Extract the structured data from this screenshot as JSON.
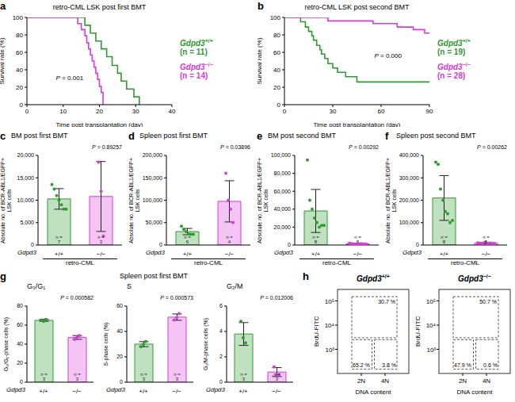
{
  "chart_data": [
    {
      "panel": "a",
      "type": "line",
      "title": "retro-CML LSK post first BMT",
      "xlabel": "Time post transplantation (day)",
      "ylabel": "Survival rate (%)",
      "xlim": [
        0,
        40
      ],
      "xticks": [
        0,
        10,
        20,
        30,
        40
      ],
      "ylim": [
        0,
        100
      ],
      "yticks": [
        0,
        20,
        40,
        60,
        80,
        100
      ],
      "line_style": "step",
      "annotation": "P = 0.001",
      "series": [
        {
          "name": "Gdpd3+/+",
          "n_label": "(n = 11)",
          "color": "#2f9a2f",
          "x": [
            0,
            16,
            17.5,
            19,
            20.5,
            22,
            23.5,
            25,
            26,
            27.5,
            29.5,
            31
          ],
          "values": [
            100,
            91,
            82,
            73,
            64,
            55,
            45,
            36,
            27,
            18,
            9,
            0
          ]
        },
        {
          "name": "Gdpd3−/−",
          "n_label": "(n = 14)",
          "color": "#d93ad9",
          "x": [
            0,
            14,
            15,
            16,
            16.5,
            17,
            17.5,
            18,
            18.5,
            19,
            19.5,
            20,
            20.5,
            21
          ],
          "values": [
            100,
            93,
            86,
            79,
            71,
            64,
            57,
            50,
            43,
            36,
            29,
            21,
            14,
            0
          ]
        }
      ]
    },
    {
      "panel": "b",
      "type": "line",
      "title": "retro-CML LSK post second BMT",
      "xlabel": "Time post transplantation (day)",
      "ylabel": "Survival rate (%)",
      "xlim": [
        0,
        90
      ],
      "xticks": [
        0,
        30,
        60,
        90
      ],
      "ylim": [
        0,
        100
      ],
      "yticks": [
        0,
        20,
        40,
        60,
        80,
        100
      ],
      "line_style": "step",
      "annotation": "P = 0.000",
      "series": [
        {
          "name": "Gdpd3+/+",
          "n_label": "(n = 19)",
          "color": "#2f9a2f",
          "x": [
            0,
            10,
            13,
            15,
            17,
            18,
            20,
            22,
            23,
            25,
            27,
            30,
            33,
            38,
            45,
            90
          ],
          "values": [
            100,
            95,
            89,
            84,
            79,
            74,
            68,
            63,
            58,
            53,
            47,
            42,
            37,
            32,
            26,
            26
          ]
        },
        {
          "name": "Gdpd3−/−",
          "n_label": "(n = 28)",
          "color": "#d93ad9",
          "x": [
            0,
            27,
            55,
            70,
            80,
            87,
            90
          ],
          "values": [
            100,
            96,
            93,
            89,
            86,
            82,
            82
          ]
        }
      ]
    },
    {
      "panel": "c",
      "type": "bar",
      "title": "BM post first BMT",
      "ylabel": "Absolute no. of BCR-ABL1/EGFP+ LSK cells",
      "xlabel": "Gdpd3",
      "group_label": "retro-CML",
      "categories": [
        "+/+",
        "−/−"
      ],
      "colors": [
        "#2f9a2f",
        "#d93ad9"
      ],
      "values": [
        10286,
        10833
      ],
      "errors": [
        2300,
        7800
      ],
      "points": [
        [
          13500,
          12500,
          11000,
          10000,
          9000,
          8000,
          8000
        ],
        [
          18500,
          12000,
          2000
        ]
      ],
      "n_labels": [
        "n = 7",
        "n = 3"
      ],
      "ylim": [
        0,
        20000
      ],
      "yticks": [
        0,
        {
          "value": 5000,
          "label": "5,000"
        },
        {
          "value": 10000,
          "label": "10,000"
        },
        {
          "value": 15000,
          "label": "15,000"
        },
        {
          "value": 20000,
          "label": "20,000"
        }
      ],
      "annotation": "P = 0.89257"
    },
    {
      "panel": "d",
      "type": "bar",
      "title": "Spleen post first BMT",
      "ylabel": "Absolute no. of BCR-ABL1/EGFP+ LSK cells",
      "xlabel": "Gdpd3",
      "group_label": "retro-CML",
      "categories": [
        "+/+",
        "−/−"
      ],
      "colors": [
        "#2f9a2f",
        "#d93ad9"
      ],
      "values": [
        30000,
        97500
      ],
      "errors": [
        7000,
        46000
      ],
      "points": [
        [
          42000,
          35000,
          30000,
          25000,
          24000,
          24000
        ],
        [
          160000,
          100000,
          80000,
          50000
        ]
      ],
      "n_labels": [
        "n = 6",
        "n = 4"
      ],
      "ylim": [
        0,
        200000
      ],
      "yticks": [
        0,
        {
          "value": 50000,
          "label": "50,000"
        },
        {
          "value": 100000,
          "label": "100,000"
        },
        {
          "value": 150000,
          "label": "150,000"
        },
        {
          "value": 200000,
          "label": "200,000"
        }
      ],
      "annotation": "P = 0.03896"
    },
    {
      "panel": "e",
      "type": "bar",
      "title": "BM post second BMT",
      "ylabel": "Absolute no. of BCR-ABL1/EGFP+ LSK cells",
      "xlabel": "Gdpd3",
      "group_label": "retro-CML",
      "categories": [
        "+/+",
        "−/−"
      ],
      "colors": [
        "#2f9a2f",
        "#d93ad9"
      ],
      "values": [
        38000,
        1250
      ],
      "errors": [
        24000,
        450
      ],
      "points": [
        [
          95000,
          50000,
          40000,
          30000,
          25000,
          20000,
          22000,
          22000
        ],
        [
          2000,
          1500,
          1000,
          1000,
          800,
          1500,
          1200,
          1000
        ]
      ],
      "n_labels": [
        "n = 8",
        "n = 8"
      ],
      "ylim": [
        0,
        100000
      ],
      "yticks": [
        0,
        {
          "value": 20000,
          "label": "20,000"
        },
        {
          "value": 40000,
          "label": "40,000"
        },
        {
          "value": 60000,
          "label": "60,000"
        },
        {
          "value": 80000,
          "label": "80,000"
        },
        {
          "value": 100000,
          "label": "100,000"
        }
      ],
      "annotation": "P = 0.00292"
    },
    {
      "panel": "f",
      "type": "bar",
      "title": "Spleen post second BMT",
      "ylabel": "Absolute no. of BCR-ABL1/EGFP+ LSK cells",
      "xlabel": "Gdpd3",
      "group_label": "retro-CML",
      "categories": [
        "+/+",
        "−/−"
      ],
      "colors": [
        "#2f9a2f",
        "#d93ad9"
      ],
      "values": [
        210000,
        8000
      ],
      "errors": [
        100000,
        2300
      ],
      "points": [
        [
          370000,
          360000,
          250000,
          200000,
          150000,
          140000,
          100000,
          110000
        ],
        [
          10000,
          8000,
          6000,
          12000,
          5000,
          9000,
          7000,
          7000
        ]
      ],
      "n_labels": [
        "n = 8",
        "n = 8"
      ],
      "ylim": [
        0,
        400000
      ],
      "yticks": [
        0,
        {
          "value": 100000,
          "label": "100,000"
        },
        {
          "value": 200000,
          "label": "200,000"
        },
        {
          "value": 300000,
          "label": "300,000"
        },
        {
          "value": 400000,
          "label": "400,000"
        }
      ],
      "annotation": "P = 0.00262"
    },
    {
      "panel": "g",
      "type": "bar",
      "title": "Spleen post first BMT",
      "subplots": [
        {
          "title": "G₀/G₁",
          "ylabel": "G₀/G₁-phase cells (%)",
          "xlabel": "Gdpd3",
          "categories": [
            "+/+",
            "−/−"
          ],
          "colors": [
            "#2f9a2f",
            "#d93ad9"
          ],
          "values": [
            65,
            47
          ],
          "errors": [
            1,
            2
          ],
          "points": [
            [
              65,
              64,
              66
            ],
            [
              45,
              47,
              49
            ]
          ],
          "n_labels": [
            "n = 3",
            "n = 3"
          ],
          "ylim": [
            0,
            80
          ],
          "yticks": [
            0,
            20,
            40,
            60,
            80
          ],
          "annotation": "P = 0.000582"
        },
        {
          "title": "S",
          "ylabel": "S-phase cells (%)",
          "xlabel": "Gdpd3",
          "categories": [
            "+/+",
            "−/−"
          ],
          "colors": [
            "#2f9a2f",
            "#d93ad9"
          ],
          "values": [
            30,
            51.3
          ],
          "errors": [
            2,
            2.5
          ],
          "points": [
            [
              28,
              30,
              32
            ],
            [
              49,
              51,
              54
            ]
          ],
          "n_labels": [
            "n = 3",
            "n = 3"
          ],
          "ylim": [
            0,
            60
          ],
          "yticks": [
            0,
            20,
            40,
            60
          ],
          "annotation": "P = 0.000573"
        },
        {
          "title": "G₂/M",
          "ylabel": "G₂/M-phase cells (%)",
          "xlabel": "Gdpd3",
          "categories": [
            "+/+",
            "−/−"
          ],
          "colors": [
            "#2f9a2f",
            "#d93ad9"
          ],
          "values": [
            3.8,
            0.8
          ],
          "errors": [
            0.9,
            0.35
          ],
          "points": [
            [
              4.8,
              3.5,
              3.1
            ],
            [
              1.2,
              0.6,
              0.6
            ]
          ],
          "n_labels": [
            "n = 3",
            "n = 3"
          ],
          "ylim": [
            0,
            6
          ],
          "yticks": [
            0,
            2,
            4,
            6
          ],
          "annotation": "P = 0.012006"
        }
      ]
    },
    {
      "panel": "h",
      "type": "dot_plot",
      "xlabel": "DNA content",
      "ylabel": "BrdU-FITC",
      "xlim": [
        0,
        6
      ],
      "xticks": [
        {
          "value": 2,
          "label": "2N"
        },
        {
          "value": 4,
          "label": "4N"
        }
      ],
      "ylim": [
        100,
        300000
      ],
      "yticks": [
        {
          "value": 1000,
          "label": "10³"
        },
        {
          "value": 10000,
          "label": "10⁴"
        },
        {
          "value": 100000,
          "label": "10⁵"
        }
      ],
      "log": "y",
      "subplots": [
        {
          "title": "Gdpd3+/+",
          "gate_labels": [
            "30.7 %",
            "65.2 %",
            "3.8 %"
          ]
        },
        {
          "title": "Gdpd3−/−",
          "gate_labels": [
            "50.7 %",
            "47.9 %",
            "0.6 %"
          ]
        }
      ]
    }
  ]
}
